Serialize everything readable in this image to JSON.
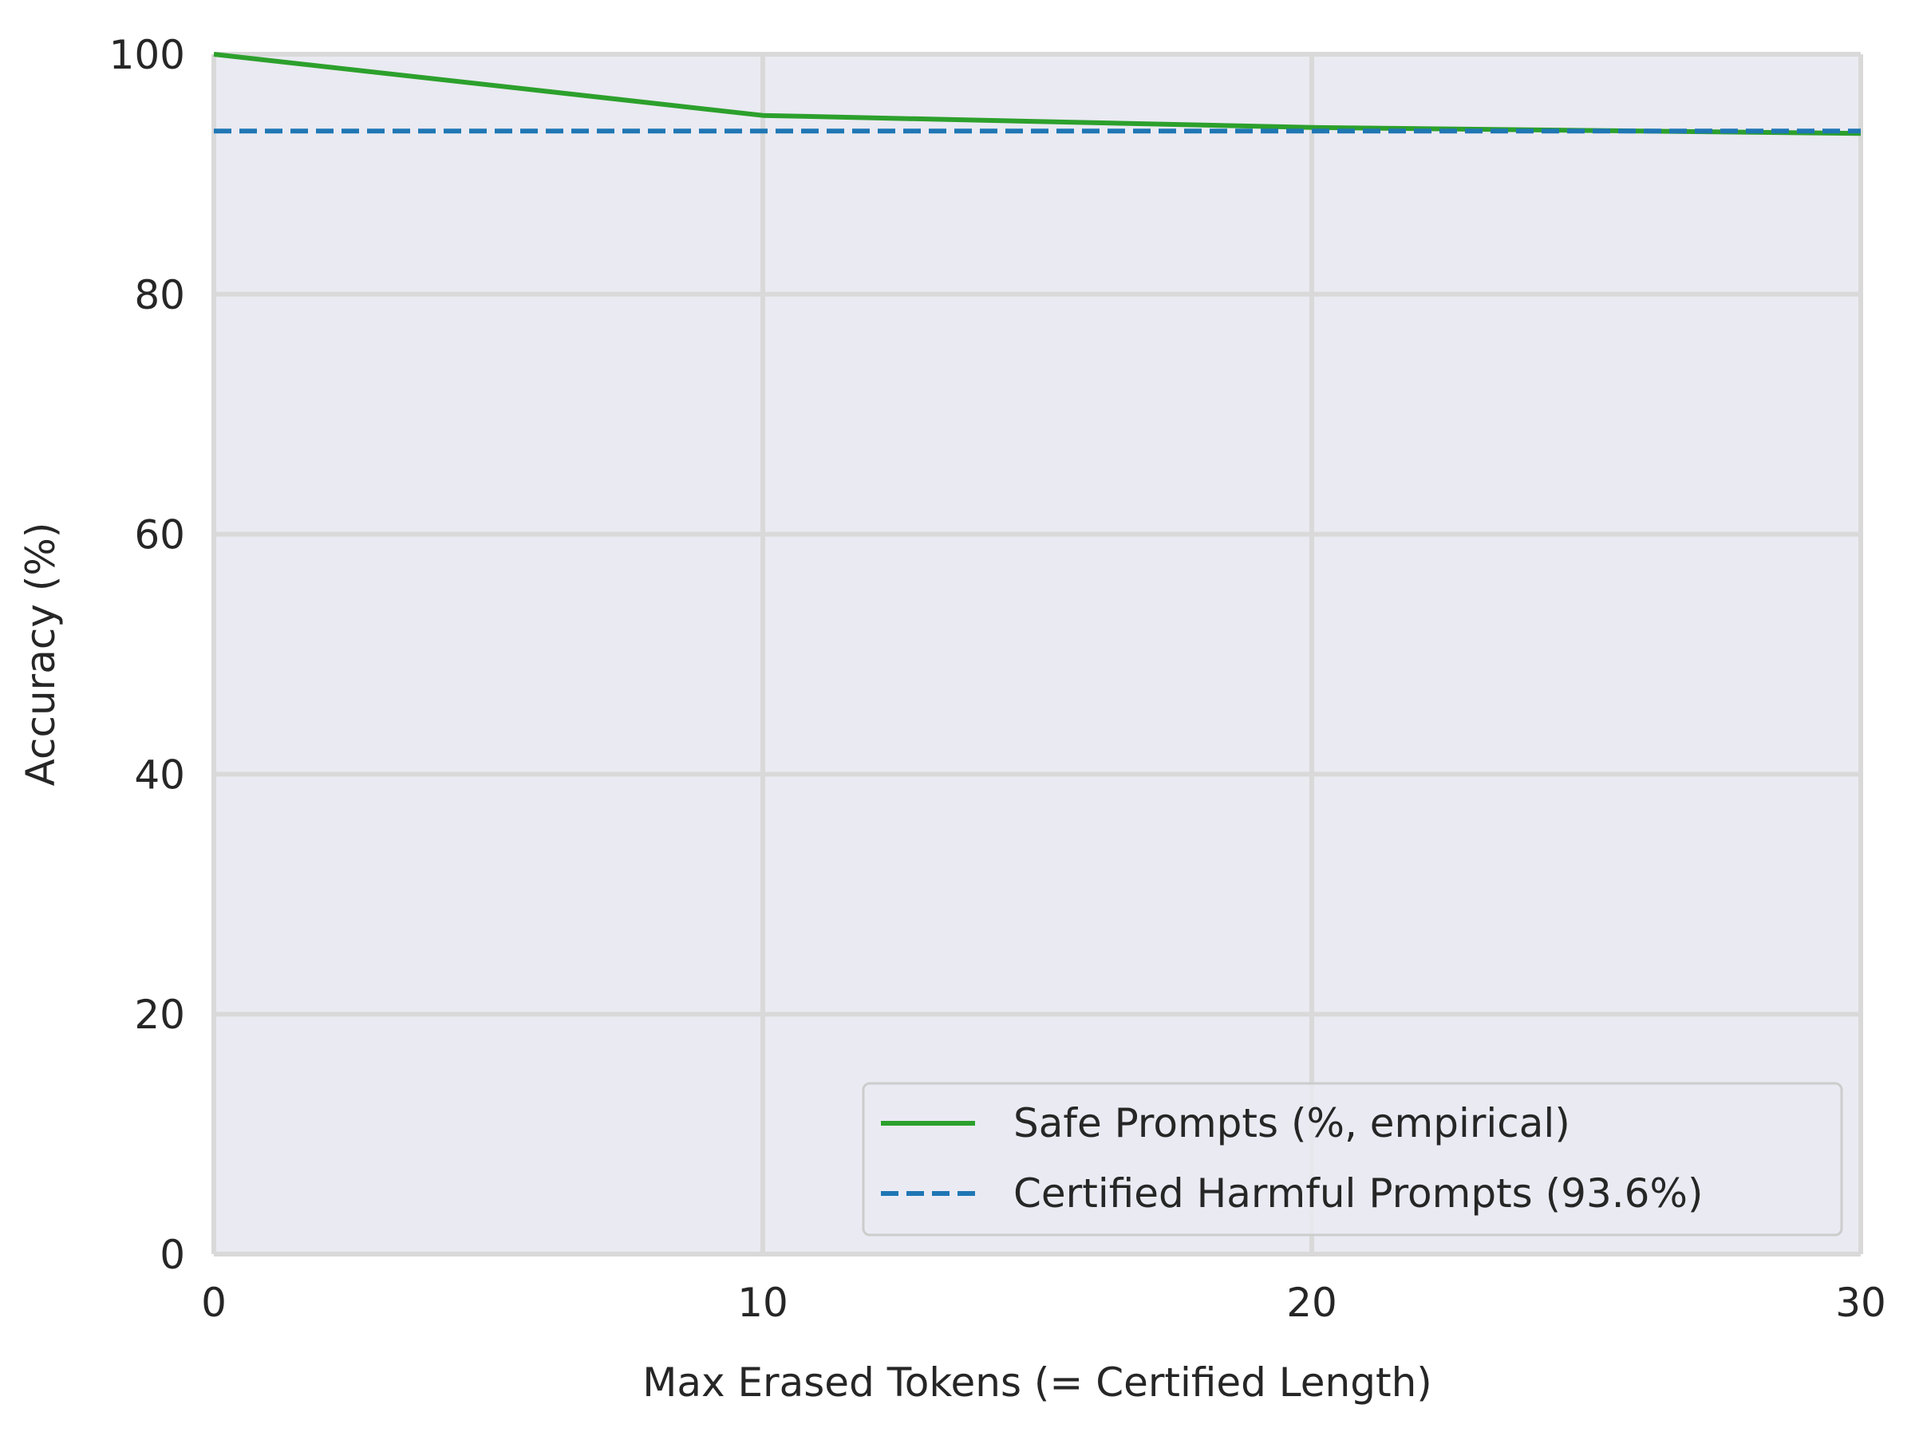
{
  "chart_data": {
    "type": "line",
    "title": "",
    "xlabel": "Max Erased Tokens (= Certified Length)",
    "ylabel": "Accuracy (%)",
    "xlim": [
      0,
      30
    ],
    "ylim": [
      0,
      100
    ],
    "xticks": [
      0,
      10,
      20,
      30
    ],
    "xtick_labels": [
      "0",
      "10",
      "20",
      "30"
    ],
    "yticks": [
      0,
      20,
      40,
      60,
      80,
      100
    ],
    "ytick_labels": [
      "0",
      "20",
      "40",
      "60",
      "80",
      "100"
    ],
    "grid": true,
    "legend_position": "lower-right",
    "series": [
      {
        "name": "Safe Prompts (%, empirical)",
        "style": "solid",
        "color": "#2ca02c",
        "x": [
          0,
          10,
          20,
          30
        ],
        "y": [
          100,
          94.9,
          93.9,
          93.4
        ]
      },
      {
        "name": "Certified Harmful Prompts (93.6%)",
        "style": "dashed",
        "color": "#1f77b4",
        "x": [
          0,
          30
        ],
        "y": [
          93.6,
          93.6
        ]
      }
    ]
  },
  "colors": {
    "plot_background": "#eaeaf2",
    "grid": "#d9d9d9",
    "text": "#262626"
  }
}
